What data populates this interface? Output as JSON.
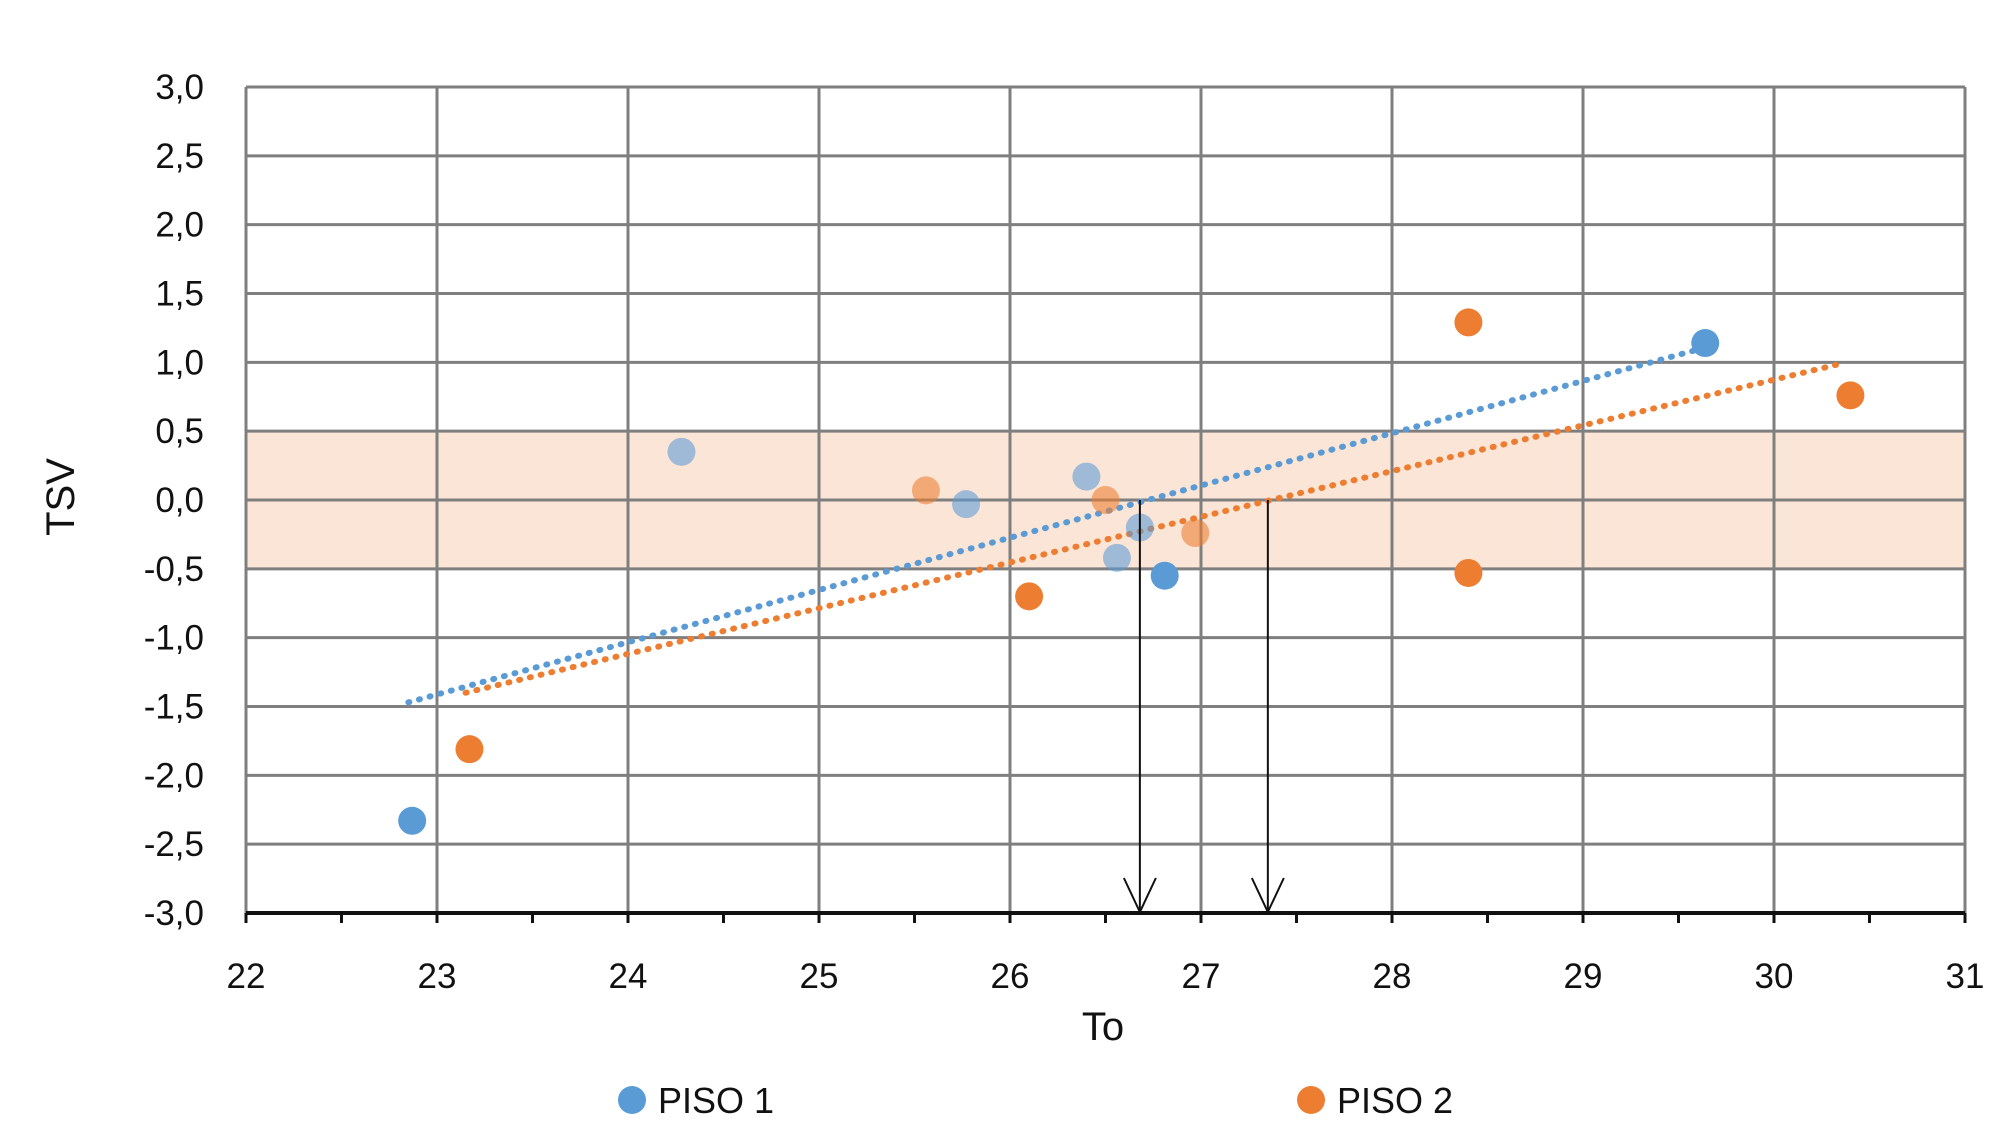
{
  "chart_data": {
    "type": "scatter",
    "title": "",
    "xlabel": "To",
    "ylabel": "TSV",
    "xlim": [
      22,
      31
    ],
    "ylim": [
      -3,
      3
    ],
    "x_ticks": [
      "22",
      "23",
      "24",
      "25",
      "26",
      "27",
      "28",
      "29",
      "30",
      "31"
    ],
    "y_ticks": [
      "3,0",
      "2,5",
      "2,0",
      "1,5",
      "1,0",
      "0,5",
      "0,0",
      "-0,5",
      "-1,0",
      "-1,5",
      "-2,0",
      "-2,5",
      "-3,0"
    ],
    "grid": true,
    "legend_position": "bottom",
    "comfort_band": {
      "y_min": -0.5,
      "y_max": 0.5,
      "color": "#fbe5d6"
    },
    "reference_arrows": [
      {
        "x": 26.68
      },
      {
        "x": 27.35
      }
    ],
    "series": [
      {
        "name": "PISO 1",
        "color": "#5b9bd5",
        "trend_color": "#5b9bd5",
        "points": [
          {
            "x": 22.87,
            "y": -2.33
          },
          {
            "x": 24.28,
            "y": 0.35
          },
          {
            "x": 25.77,
            "y": -0.03
          },
          {
            "x": 26.4,
            "y": 0.17
          },
          {
            "x": 26.68,
            "y": -0.2
          },
          {
            "x": 26.56,
            "y": -0.42
          },
          {
            "x": 26.81,
            "y": -0.55
          },
          {
            "x": 29.64,
            "y": 1.14
          }
        ],
        "trendline": {
          "x1": 22.85,
          "y1": -1.47,
          "x2": 29.62,
          "y2": 1.1
        }
      },
      {
        "name": "PISO 2",
        "color": "#ed7d31",
        "trend_color": "#ed7d31",
        "points": [
          {
            "x": 23.17,
            "y": -1.81
          },
          {
            "x": 25.56,
            "y": 0.07
          },
          {
            "x": 26.1,
            "y": -0.7
          },
          {
            "x": 26.5,
            "y": 0.0
          },
          {
            "x": 26.97,
            "y": -0.24
          },
          {
            "x": 28.4,
            "y": 1.29
          },
          {
            "x": 28.4,
            "y": -0.53
          },
          {
            "x": 30.4,
            "y": 0.76
          }
        ],
        "trendline": {
          "x1": 23.15,
          "y1": -1.4,
          "x2": 30.35,
          "y2": 0.99
        }
      }
    ]
  }
}
